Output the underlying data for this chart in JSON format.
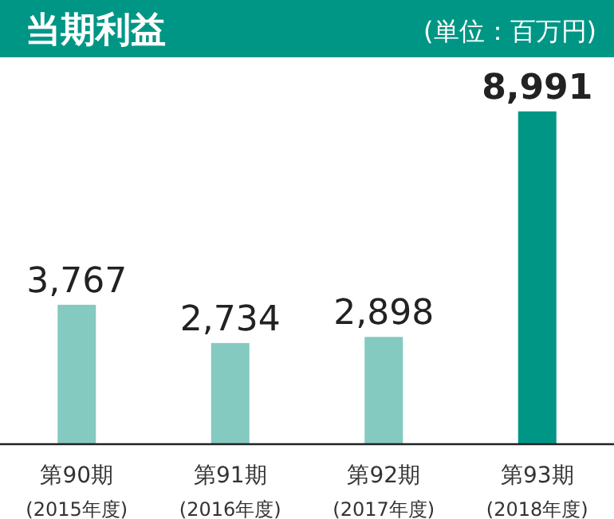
{
  "chart_data": {
    "type": "bar",
    "title": "当期利益",
    "subtitle": "(単位：百万円)",
    "categories": [
      "第90期\n(2015年度)",
      "第91期\n(2016年度)",
      "第92期\n(2017年度)",
      "第93期\n(2018年度)"
    ],
    "values": [
      3767,
      2734,
      2898,
      8991
    ],
    "colors": [
      "#84cac0",
      "#84cac0",
      "#84cac0",
      "#009685"
    ],
    "value_labels": [
      "3,767",
      "2,734",
      "2,898",
      "8,991"
    ]
  }
}
